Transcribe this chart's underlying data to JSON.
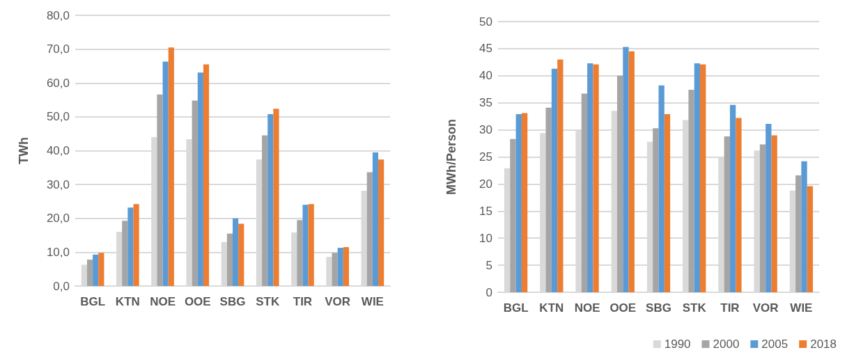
{
  "chart_data": [
    {
      "type": "bar",
      "ylabel": "TWh",
      "categories": [
        "BGL",
        "KTN",
        "NOE",
        "OOE",
        "SBG",
        "STK",
        "TIR",
        "VOR",
        "WIE"
      ],
      "series": [
        {
          "color": "#d9d9d9",
          "values": [
            6.3,
            16.0,
            44.0,
            43.4,
            13.0,
            37.4,
            15.8,
            8.6,
            28.2
          ]
        },
        {
          "color": "#a5a5a5",
          "values": [
            7.8,
            19.3,
            56.6,
            54.8,
            15.5,
            44.5,
            19.5,
            9.8,
            33.6
          ]
        },
        {
          "color": "#5b9bd5",
          "values": [
            9.3,
            23.2,
            66.3,
            63.1,
            20.0,
            50.8,
            24.0,
            11.3,
            39.5
          ]
        },
        {
          "color": "#ed7d31",
          "values": [
            9.8,
            24.2,
            70.5,
            65.5,
            18.4,
            52.4,
            24.2,
            11.5,
            37.4
          ]
        }
      ],
      "ylim": [
        0,
        80
      ],
      "yticks": [
        {
          "value": 0,
          "label": "0,0"
        },
        {
          "value": 10,
          "label": "10,0"
        },
        {
          "value": 20,
          "label": "20,0"
        },
        {
          "value": 30,
          "label": "30,0"
        },
        {
          "value": 40,
          "label": "40,0"
        },
        {
          "value": 50,
          "label": "50,0"
        },
        {
          "value": 60,
          "label": "60,0"
        },
        {
          "value": 70,
          "label": "70,0"
        },
        {
          "value": 80,
          "label": "80,0"
        }
      ],
      "grid": "y",
      "legend": false
    },
    {
      "type": "bar",
      "ylabel": "MWh/Person",
      "categories": [
        "BGL",
        "KTN",
        "NOE",
        "OOE",
        "SBG",
        "STK",
        "TIR",
        "VOR",
        "WIE"
      ],
      "series": [
        {
          "name": "1990",
          "color": "#d9d9d9",
          "values": [
            22.9,
            29.4,
            30.0,
            33.5,
            27.8,
            31.8,
            25.0,
            26.2,
            18.8
          ]
        },
        {
          "name": "2000",
          "color": "#a5a5a5",
          "values": [
            28.3,
            34.1,
            36.7,
            40.0,
            30.3,
            37.4,
            28.8,
            27.3,
            21.6
          ]
        },
        {
          "name": "2005",
          "color": "#5b9bd5",
          "values": [
            32.9,
            41.3,
            42.3,
            45.3,
            38.2,
            42.3,
            34.6,
            31.1,
            24.2
          ]
        },
        {
          "name": "2018",
          "color": "#ed7d31",
          "values": [
            33.1,
            43.0,
            42.1,
            44.5,
            32.9,
            42.1,
            32.2,
            29.0,
            19.6
          ]
        }
      ],
      "ylim": [
        0,
        50
      ],
      "yticks": [
        0,
        5,
        10,
        15,
        20,
        25,
        30,
        35,
        40,
        45,
        50
      ],
      "grid": "y",
      "legend": "bottom right"
    }
  ]
}
